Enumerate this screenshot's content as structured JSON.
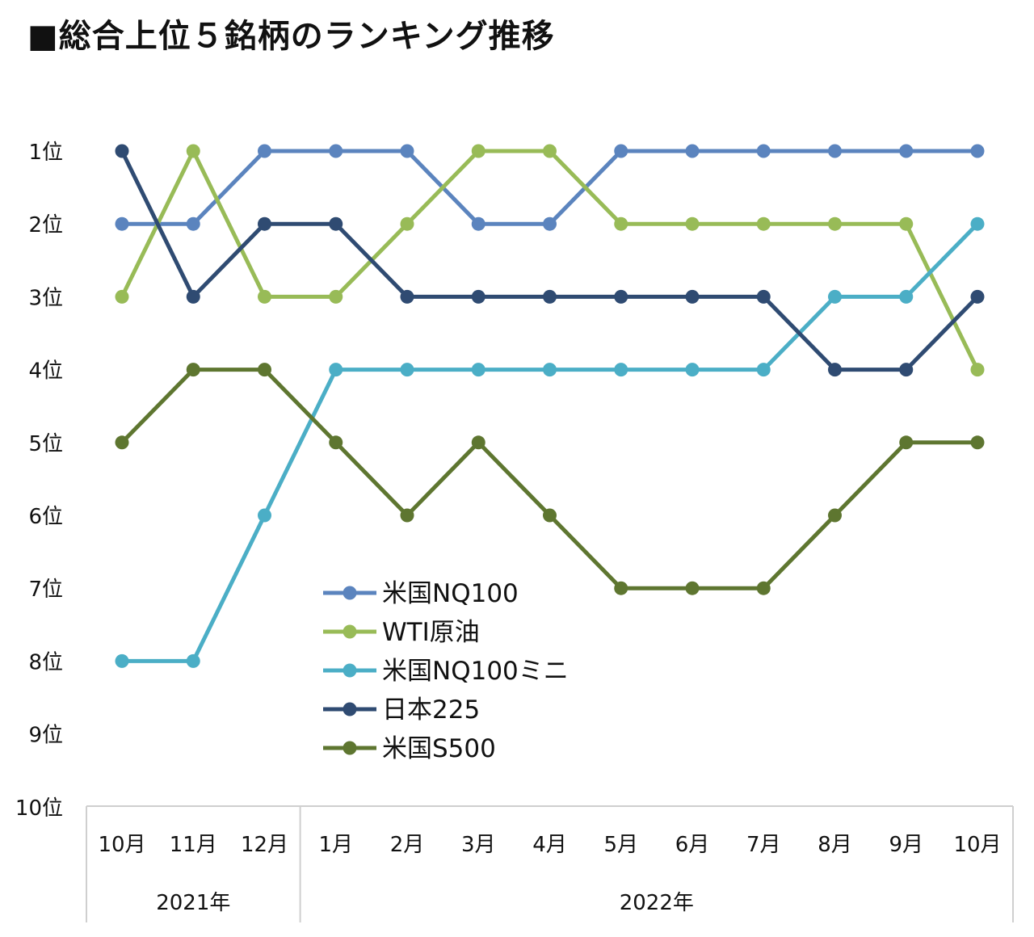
{
  "chart_data": {
    "type": "line",
    "title": "■総合上位５銘柄のランキング推移",
    "categories": [
      "10月",
      "11月",
      "12月",
      "1月",
      "2月",
      "3月",
      "4月",
      "5月",
      "6月",
      "7月",
      "8月",
      "9月",
      "10月"
    ],
    "category_groups": [
      {
        "label": "2021年",
        "count": 3
      },
      {
        "label": "2022年",
        "count": 10
      }
    ],
    "y_ticks": [
      "1位",
      "2位",
      "3位",
      "4位",
      "5位",
      "6位",
      "7位",
      "8位",
      "9位",
      "10位"
    ],
    "ylim": [
      1,
      10
    ],
    "y_inverted": true,
    "legend_position": "center-left",
    "series": [
      {
        "name": "米国NQ100",
        "color": "#5B84BE",
        "values": [
          2,
          2,
          1,
          1,
          1,
          2,
          2,
          1,
          1,
          1,
          1,
          1,
          1
        ]
      },
      {
        "name": "WTI原油",
        "color": "#98BB57",
        "values": [
          3,
          1,
          3,
          3,
          2,
          1,
          1,
          2,
          2,
          2,
          2,
          2,
          4
        ]
      },
      {
        "name": "米国NQ100ミニ",
        "color": "#4BAEC6",
        "values": [
          8,
          8,
          6,
          4,
          4,
          4,
          4,
          4,
          4,
          4,
          3,
          3,
          2
        ]
      },
      {
        "name": "日本225",
        "color": "#2F4B72",
        "values": [
          1,
          3,
          2,
          2,
          3,
          3,
          3,
          3,
          3,
          3,
          4,
          4,
          3
        ]
      },
      {
        "name": "米国S500",
        "color": "#5E7630",
        "values": [
          5,
          4,
          4,
          5,
          6,
          5,
          6,
          7,
          7,
          7,
          6,
          5,
          5
        ]
      }
    ]
  }
}
